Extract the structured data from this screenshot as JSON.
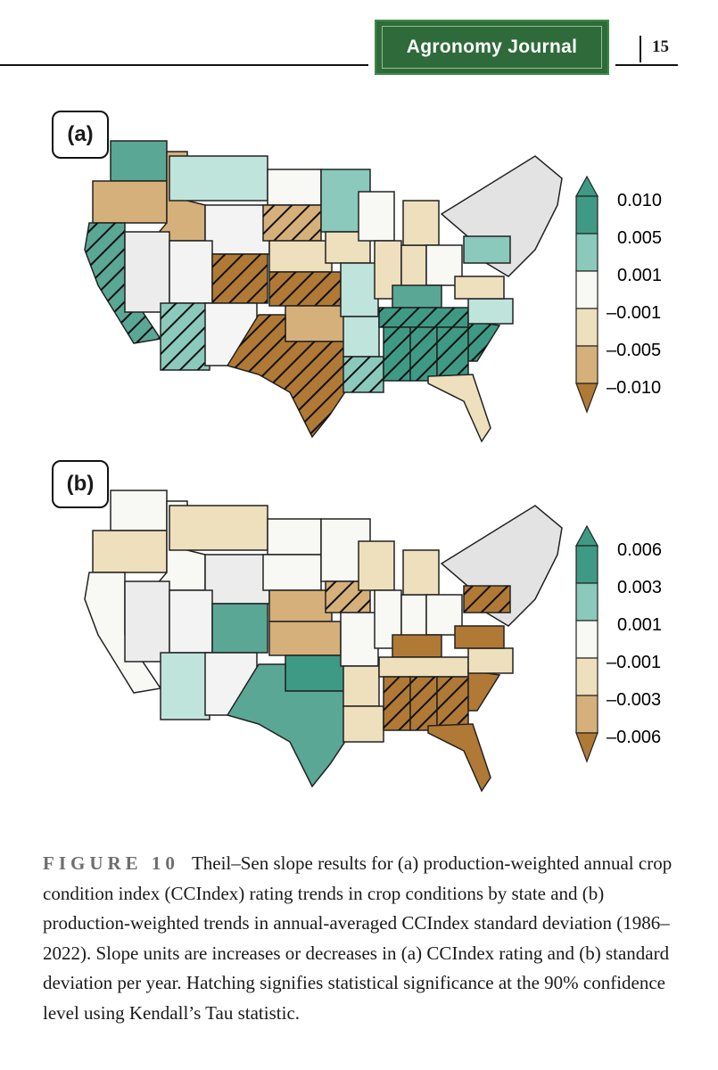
{
  "header": {
    "journal": "Agronomy Journal",
    "page_number": "15"
  },
  "panels": [
    {
      "label": "(a)",
      "legend": [
        "0.010",
        "0.005",
        "0.001",
        "–0.001",
        "–0.005",
        "–0.010"
      ],
      "colors": [
        "#3e9a85",
        "#8ac9bc",
        "#f8f8f4",
        "#eedfbd",
        "#d6b07a",
        "#b07935"
      ]
    },
    {
      "label": "(b)",
      "legend": [
        "0.006",
        "0.003",
        "0.001",
        "–0.001",
        "–0.003",
        "–0.006"
      ],
      "colors": [
        "#3e9a85",
        "#8ac9bc",
        "#f8f8f4",
        "#eedfbd",
        "#d6b07a",
        "#b07935"
      ]
    }
  ],
  "caption": {
    "figure_label": "FIGURE 10",
    "text": "Theil–Sen slope results for (a) production-weighted annual crop condition index (CCIndex) rating trends in crop conditions by state and (b) production-weighted trends in annual-averaged CCIndex standard deviation (1986–2022). Slope units are increases or decreases in (a) CCIndex rating and (b) standard deviation per year. Hatching signifies statistical significance at the 90% confidence level using Kendall’s Tau statistic."
  }
}
